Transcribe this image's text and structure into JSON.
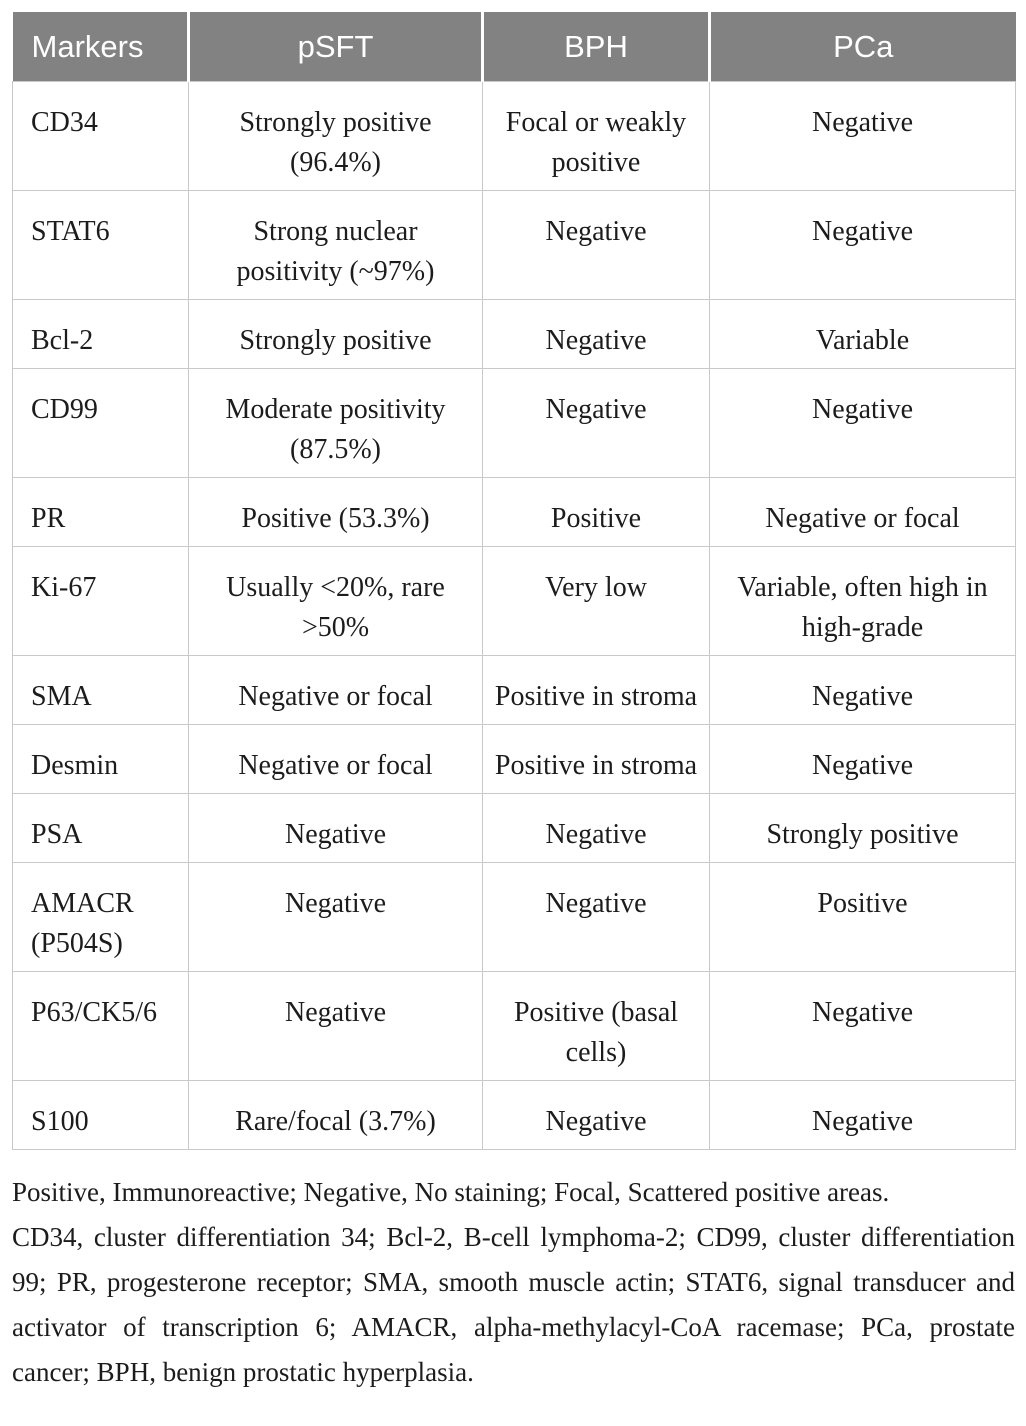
{
  "table": {
    "headers": [
      "Markers",
      "pSFT",
      "BPH",
      "PCa"
    ],
    "rows": [
      {
        "marker": "CD34",
        "psft": "Strongly positive (96.4%)",
        "bph": "Focal or weakly positive",
        "pca": "Negative"
      },
      {
        "marker": "STAT6",
        "psft": "Strong nuclear positivity (~97%)",
        "bph": "Negative",
        "pca": "Negative"
      },
      {
        "marker": "Bcl-2",
        "psft": "Strongly positive",
        "bph": "Negative",
        "pca": "Variable"
      },
      {
        "marker": "CD99",
        "psft": "Moderate positivity (87.5%)",
        "bph": "Negative",
        "pca": "Negative"
      },
      {
        "marker": "PR",
        "psft": "Positive (53.3%)",
        "bph": "Positive",
        "pca": "Negative or focal"
      },
      {
        "marker": "Ki-67",
        "psft": "Usually <20%, rare >50%",
        "bph": "Very low",
        "pca": "Variable, often high in high-grade"
      },
      {
        "marker": "SMA",
        "psft": "Negative or focal",
        "bph": "Positive in stroma",
        "pca": "Negative"
      },
      {
        "marker": "Desmin",
        "psft": "Negative or focal",
        "bph": "Positive in stroma",
        "pca": "Negative"
      },
      {
        "marker": "PSA",
        "psft": "Negative",
        "bph": "Negative",
        "pca": "Strongly positive"
      },
      {
        "marker": "AMACR (P504S)",
        "psft": "Negative",
        "bph": "Negative",
        "pca": "Positive"
      },
      {
        "marker": "P63/CK5/6",
        "psft": "Negative",
        "bph": "Positive (basal cells)",
        "pca": "Negative"
      },
      {
        "marker": "S100",
        "psft": "Rare/focal (3.7%)",
        "bph": "Negative",
        "pca": "Negative"
      }
    ]
  },
  "footnotes": {
    "definitions": "Positive, Immunoreactive; Negative, No staining; Focal, Scattered positive areas.",
    "abbreviations": "CD34, cluster differentiation 34; Bcl-2, B-cell lymphoma-2; CD99, cluster differentiation 99; PR, progesterone receptor; SMA, smooth muscle actin; STAT6, signal transducer and activator of transcription 6; AMACR, alpha-methylacyl-CoA racemase; PCa, prostate cancer; BPH, benign prostatic hyperplasia."
  },
  "colors": {
    "header_bg": "#828282",
    "header_text": "#ffffff",
    "body_text": "#1c1c1c",
    "border": "#c9c9c9"
  }
}
